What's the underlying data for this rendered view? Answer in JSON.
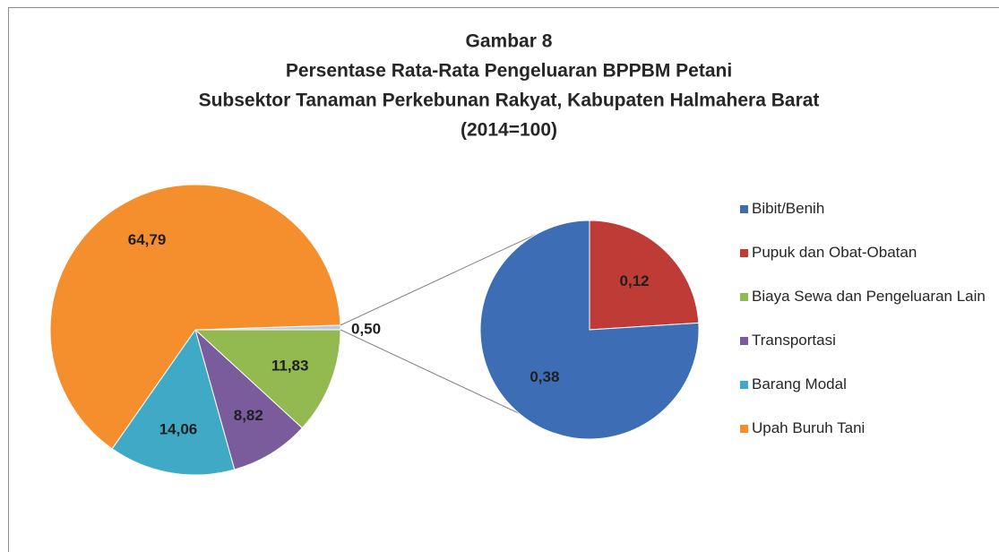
{
  "chart_data": {
    "type": "pie-of-pie",
    "title": [
      "Gambar 8",
      "Persentase Rata-Rata Pengeluaran BPPBM Petani",
      "Subsektor Tanaman Perkebunan Rakyat, Kabupaten Halmahera Barat",
      "(2014=100)"
    ],
    "categories": [
      "Bibit/Benih",
      "Pupuk dan Obat-Obatan",
      "Biaya Sewa dan Pengeluaran Lain",
      "Transportasi",
      "Barang Modal",
      "Upah Buruh Tani"
    ],
    "values": [
      0.38,
      0.12,
      11.83,
      8.82,
      14.06,
      64.79
    ],
    "value_labels": [
      "0,38",
      "0,12",
      "11,83",
      "8,82",
      "14,06",
      "64,79"
    ],
    "colors": [
      "#3d6db5",
      "#be3b36",
      "#93b951",
      "#7a5b9c",
      "#3fa9c6",
      "#f58f2e"
    ],
    "secondary_count": 2,
    "other_value": 0.5,
    "other_label": "0,50",
    "other_color": "#b9cbe3",
    "legend": "right"
  }
}
